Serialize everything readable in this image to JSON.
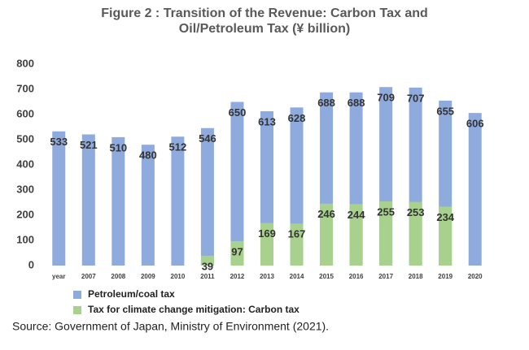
{
  "chart_data": {
    "type": "bar",
    "title": "Figure 2 : Transition of the Revenue: Carbon Tax and",
    "subtitle": "Oil/Petroleum Tax (¥ billion)",
    "categories": [
      "year",
      "2007",
      "2008",
      "2009",
      "2010",
      "2011",
      "2012",
      "2013",
      "2014",
      "2015",
      "2016",
      "2017",
      "2018",
      "2019",
      "2020"
    ],
    "series": [
      {
        "name": "Petroleum/coal tax",
        "color": "#8faadc",
        "values": [
          533,
          521,
          510,
          480,
          512,
          546,
          650,
          613,
          628,
          688,
          688,
          709,
          707,
          655,
          606
        ]
      },
      {
        "name": "Tax for climate change mitigation: Carbon tax",
        "color": "#a9d18e",
        "values": [
          null,
          null,
          null,
          null,
          null,
          39,
          97,
          169,
          167,
          246,
          244,
          255,
          253,
          234,
          null
        ]
      }
    ],
    "ylim": [
      0,
      800
    ],
    "yticks": [
      0,
      100,
      200,
      300,
      400,
      500,
      600,
      700,
      800
    ],
    "grid": false,
    "source": "Source: Government of Japan, Ministry of Environment (2021)."
  }
}
